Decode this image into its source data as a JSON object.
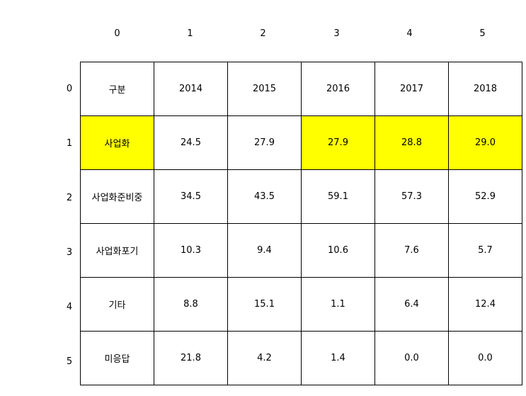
{
  "column_headers": [
    "0",
    "1",
    "2",
    "3",
    "4",
    "5"
  ],
  "row_headers": [
    "0",
    "1",
    "2",
    "3",
    "4",
    "5"
  ],
  "highlight_color": "#ffff00",
  "rows": [
    {
      "cells": [
        "구분",
        "2014",
        "2015",
        "2016",
        "2017",
        "2018"
      ],
      "highlight": [
        false,
        false,
        false,
        false,
        false,
        false
      ]
    },
    {
      "cells": [
        "사업화",
        "24.5",
        "27.9",
        "27.9",
        "28.8",
        "29.0"
      ],
      "highlight": [
        true,
        false,
        false,
        true,
        true,
        true
      ]
    },
    {
      "cells": [
        "사업화준비중",
        "34.5",
        "43.5",
        "59.1",
        "57.3",
        "52.9"
      ],
      "highlight": [
        false,
        false,
        false,
        false,
        false,
        false
      ]
    },
    {
      "cells": [
        "사업화포기",
        "10.3",
        "9.4",
        "10.6",
        "7.6",
        "5.7"
      ],
      "highlight": [
        false,
        false,
        false,
        false,
        false,
        false
      ]
    },
    {
      "cells": [
        "기타",
        "8.8",
        "15.1",
        "1.1",
        "6.4",
        "12.4"
      ],
      "highlight": [
        false,
        false,
        false,
        false,
        false,
        false
      ]
    },
    {
      "cells": [
        "미응답",
        "21.8",
        "4.2",
        "1.4",
        "0.0",
        "0.0"
      ],
      "highlight": [
        false,
        false,
        false,
        false,
        false,
        false
      ]
    }
  ]
}
